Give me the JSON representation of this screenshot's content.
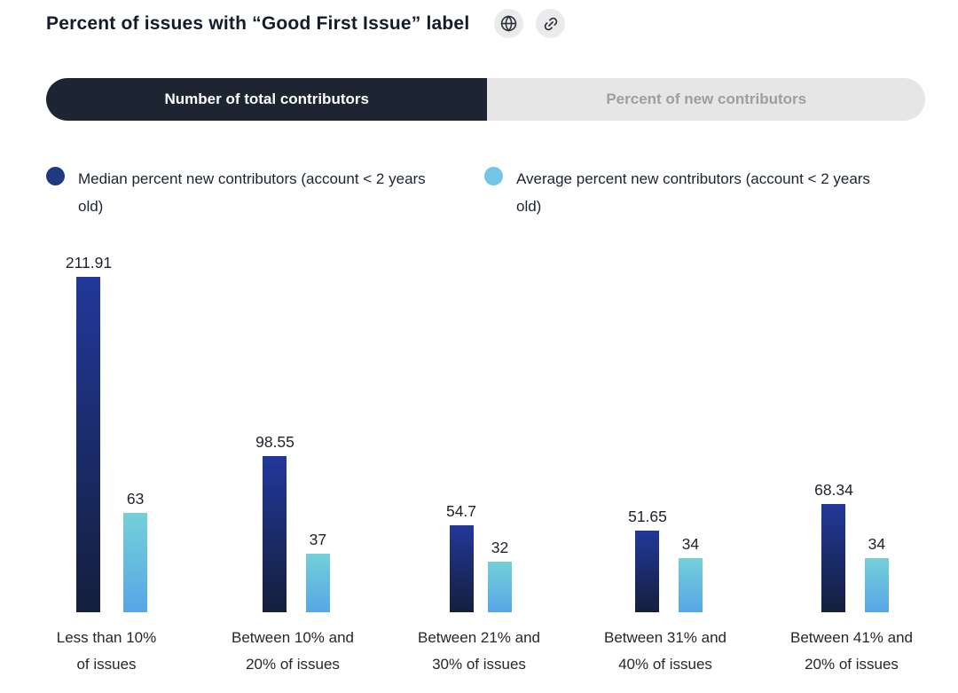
{
  "header": {
    "title": "Percent of issues with “Good First Issue” label"
  },
  "tabs": {
    "active_label": "Number of total contributors",
    "inactive_label": "Percent of new contributors"
  },
  "legend": [
    {
      "label": "Median percent new contributors (account < 2 years old)",
      "color": "#21397f"
    },
    {
      "label": "Average percent new contributors (account < 2 years old)",
      "color": "#72c6e3"
    }
  ],
  "colors": {
    "bar_dark_top": "#22389a",
    "bar_dark_bottom": "#141f3c",
    "bar_light_top": "#74d0d8",
    "bar_light_bottom": "#55a7e6",
    "active_tab_bg": "#1d2533",
    "inactive_tab_bg": "#e6e6e6"
  },
  "chart_data": {
    "type": "bar",
    "title": "Percent of issues with “Good First Issue” label",
    "categories": [
      "Less than 10% of issues",
      "Between 10% and 20% of issues",
      "Between 21% and 30% of issues",
      "Between 31% and 40% of issues",
      "Between 41% and 20% of issues"
    ],
    "series": [
      {
        "name": "Median percent new contributors (account < 2 years old)",
        "values": [
          211.91,
          98.55,
          54.7,
          51.65,
          68.34
        ]
      },
      {
        "name": "Average percent new contributors (account < 2 years old)",
        "values": [
          63,
          37,
          32,
          34,
          34
        ]
      }
    ],
    "value_labels": [
      [
        "211.91",
        "98.55",
        "54.7",
        "51.65",
        "68.34"
      ],
      [
        "63",
        "37",
        "32",
        "34",
        "34"
      ]
    ],
    "xlabel": "",
    "ylabel": "",
    "ylim": [
      0,
      211.91
    ],
    "grid": false,
    "legend_position": "top"
  }
}
